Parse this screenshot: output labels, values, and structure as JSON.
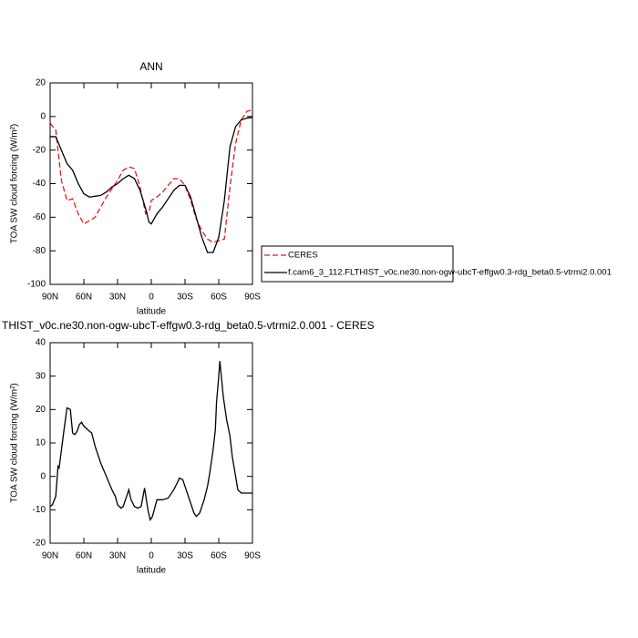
{
  "chart_data": [
    {
      "type": "line",
      "title": "ANN",
      "xlabel": "latitude",
      "ylabel": "TOA SW cloud forcing (W/m²)",
      "x": [
        90,
        85,
        80,
        75,
        70,
        65,
        60,
        55,
        50,
        45,
        40,
        35,
        30,
        25,
        20,
        15,
        10,
        5,
        2,
        0,
        -5,
        -10,
        -15,
        -20,
        -25,
        -30,
        -35,
        -40,
        -45,
        -50,
        -55,
        -60,
        -65,
        -70,
        -75,
        -80,
        -85,
        -90
      ],
      "series": [
        {
          "name": "CERES",
          "color": "#e41a1c",
          "dash": true,
          "values": [
            -4,
            -8,
            -38,
            -50,
            -49,
            -58,
            -64,
            -62,
            -60,
            -54,
            -48,
            -43,
            -38,
            -32,
            -30,
            -31,
            -42,
            -58,
            -57,
            -50,
            -48,
            -45,
            -41,
            -37,
            -37,
            -41,
            -50,
            -61,
            -68,
            -73,
            -75,
            -74,
            -73,
            -42,
            -16,
            -2,
            3,
            4
          ]
        },
        {
          "name": "f.cam6_3_112.FLTHIST_v0c.ne30.non-ogw-ubcT-effgw0.3-rdg_beta0.5-vtrmi2.0.001",
          "color": "#000000",
          "dash": false,
          "values": [
            -12,
            -12,
            -20,
            -28,
            -32,
            -40,
            -46,
            -48,
            -47.5,
            -47,
            -45,
            -42,
            -40,
            -37,
            -35,
            -37,
            -44,
            -55,
            -63,
            -64,
            -58,
            -54,
            -49,
            -44,
            -41,
            -41,
            -48,
            -60,
            -72,
            -81,
            -81,
            -72,
            -50,
            -18,
            -6,
            -2,
            -1,
            -0.5
          ]
        }
      ],
      "xlim": [
        90,
        -90
      ],
      "xticks": [
        {
          "value": 90,
          "label": "90N"
        },
        {
          "value": 60,
          "label": "60N"
        },
        {
          "value": 30,
          "label": "30N"
        },
        0,
        {
          "value": -30,
          "label": "30S"
        },
        {
          "value": -60,
          "label": "60S"
        },
        {
          "value": -90,
          "label": "90S"
        }
      ],
      "ylim": [
        -100,
        20
      ],
      "yticks": [
        -100,
        -80,
        -60,
        -40,
        -20,
        0,
        20
      ],
      "legend": "right"
    },
    {
      "type": "line",
      "title": "THIST_v0c.ne30.non-ogw-ubcT-effgw0.3-rdg_beta0.5-vtrmi2.0.001 - CERES",
      "xlabel": "latitude",
      "ylabel": "TOA SW cloud forcing (W/m²)",
      "x": [
        90,
        88,
        85,
        83,
        82,
        78,
        75,
        72,
        70,
        68,
        66,
        64,
        62,
        60,
        55,
        53,
        50,
        48,
        45,
        40,
        35,
        32,
        30,
        27,
        25,
        22,
        20,
        18,
        15,
        12,
        9,
        6,
        3,
        1,
        -1,
        -5,
        -10,
        -15,
        -20,
        -23,
        -25,
        -28,
        -30,
        -35,
        -38,
        -40,
        -43,
        -47,
        -50,
        -52,
        -55,
        -57,
        -58,
        -60,
        -61,
        -62,
        -64,
        -67,
        -70,
        -72,
        -75,
        -77,
        -80,
        -90
      ],
      "series": [
        {
          "color": "#000000",
          "dash": false,
          "values": [
            -9,
            -8.5,
            -6,
            3,
            2.5,
            13,
            20.5,
            20,
            13,
            12.5,
            13.5,
            15.5,
            16.2,
            15,
            13.5,
            13,
            9,
            7,
            4,
            0,
            -4,
            -6,
            -8.5,
            -9.5,
            -9,
            -6,
            -4,
            -7,
            -9,
            -9.5,
            -9,
            -3.5,
            -10,
            -13,
            -12,
            -7,
            -7,
            -6.5,
            -4,
            -2,
            -0.5,
            -1,
            -3,
            -8,
            -11,
            -12,
            -11,
            -7,
            -3,
            1,
            8,
            14,
            22,
            30,
            34.5,
            31,
            24,
            17,
            12,
            6,
            0,
            -4,
            -5,
            -5
          ]
        }
      ],
      "xlim": [
        90,
        -90
      ],
      "xticks": [
        {
          "value": 90,
          "label": "90N"
        },
        {
          "value": 60,
          "label": "60N"
        },
        {
          "value": 30,
          "label": "30N"
        },
        0,
        {
          "value": -30,
          "label": "30S"
        },
        {
          "value": -60,
          "label": "60S"
        },
        {
          "value": -90,
          "label": "90S"
        }
      ],
      "ylim": [
        -20,
        40
      ],
      "yticks": [
        -20,
        -10,
        0,
        10,
        20,
        30,
        40
      ]
    }
  ]
}
